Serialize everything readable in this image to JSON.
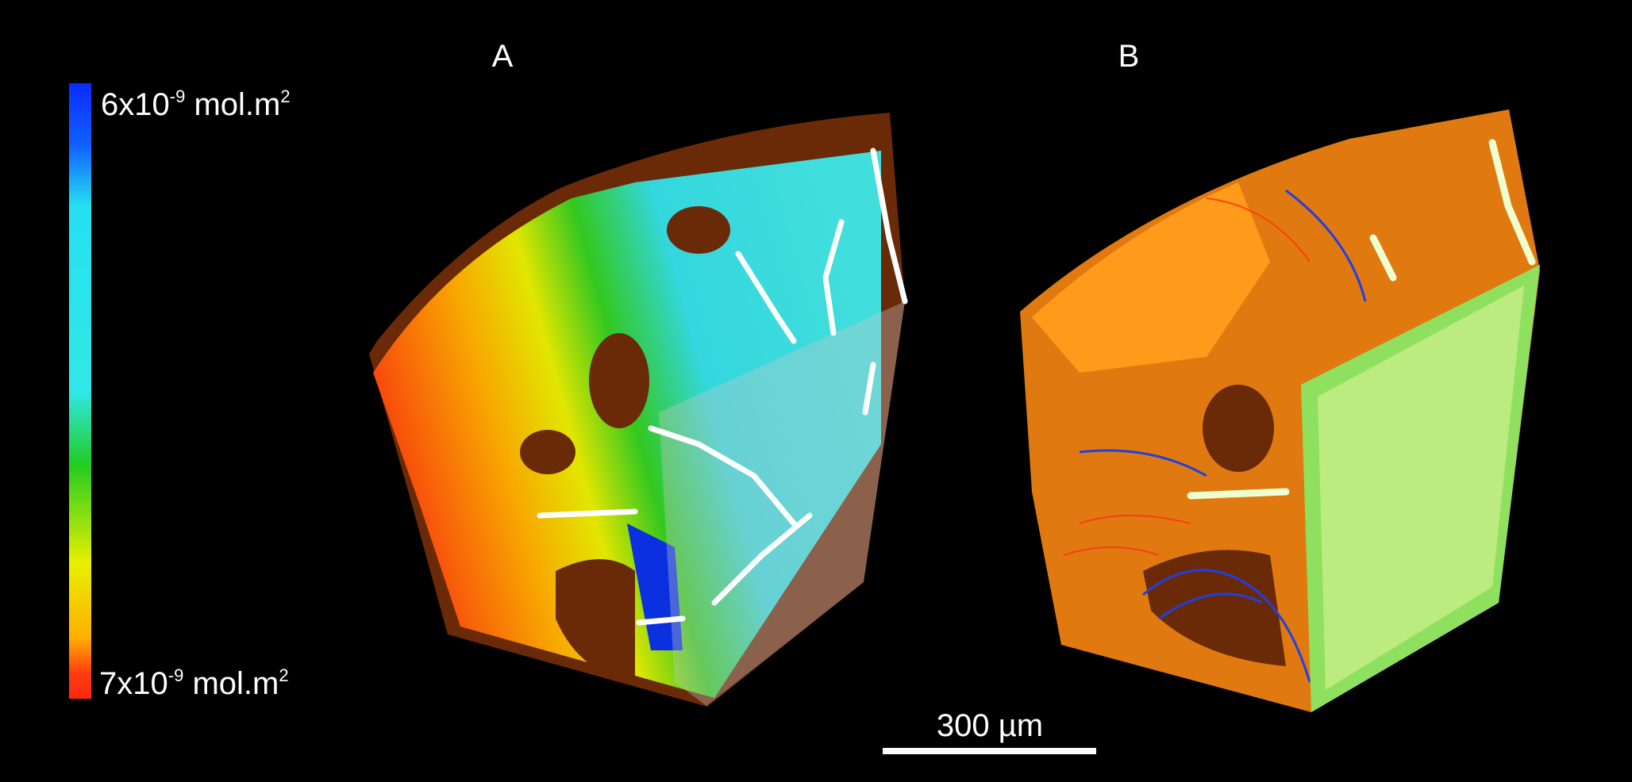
{
  "panels": {
    "a": "A",
    "b": "B"
  },
  "colorbar": {
    "top": {
      "base": "6x10",
      "exp": "-9",
      "unit": "mol.m",
      "unit_exp": "2"
    },
    "bottom": {
      "base": "7x10",
      "exp": "-9",
      "unit": "mol.m",
      "unit_exp": "2"
    }
  },
  "scale_bar": {
    "label": "300 µm"
  }
}
